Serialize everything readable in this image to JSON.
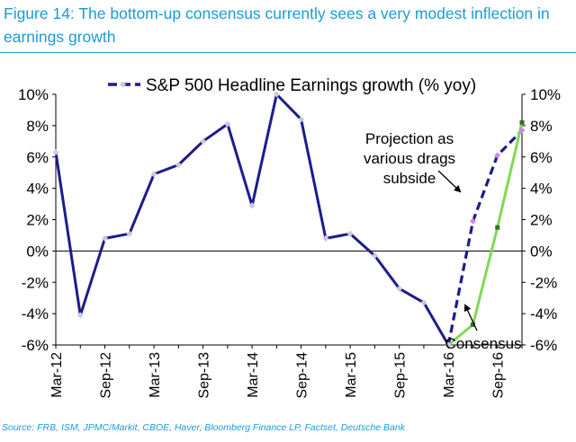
{
  "header": {
    "title": "Figure 14: The bottom-up consensus currently sees a very modest inflection in earnings growth"
  },
  "footer": {
    "source": "Source: FRB, ISM, JPMC/Markit, CBOE, Haver, Bloomberg Finance LP, Factset, Deutsche Bank"
  },
  "chart_data": {
    "type": "line",
    "x_tick_labels": [
      "Mar-12",
      "Sep-12",
      "Mar-13",
      "Sep-13",
      "Mar-14",
      "Sep-14",
      "Mar-15",
      "Sep-15",
      "Mar-16",
      "Sep-16"
    ],
    "y_tick_labels": [
      "10%",
      "8%",
      "6%",
      "4%",
      "2%",
      "0%",
      "-2%",
      "-4%",
      "-6%"
    ],
    "ylim": [
      -6,
      10
    ],
    "grid": false,
    "legend": {
      "position": "top",
      "entries": [
        "S&P 500 Headline Earnings growth (% yoy)"
      ]
    },
    "series": [
      {
        "name": "S&P 500 Headline Earnings growth (% yoy)",
        "color": "#1c1c8c",
        "style": "solid",
        "x": [
          "Mar-12",
          "Jun-12",
          "Sep-12",
          "Dec-12",
          "Mar-13",
          "Jun-13",
          "Sep-13",
          "Dec-13",
          "Mar-14",
          "Jun-14",
          "Sep-14",
          "Dec-14",
          "Mar-15",
          "Jun-15",
          "Sep-15",
          "Dec-15",
          "Mar-16"
        ],
        "values": [
          6.3,
          -4.1,
          0.8,
          1.1,
          4.9,
          5.5,
          7.0,
          8.1,
          2.9,
          10.0,
          8.4,
          0.8,
          1.1,
          -0.3,
          -2.4,
          -3.3,
          -6.0
        ]
      },
      {
        "name": "",
        "color": "#1c1c8c",
        "style": "dashed",
        "x": [
          "Mar-16",
          "Jun-16",
          "Sep-16",
          "Dec-16"
        ],
        "values": [
          -6.0,
          1.9,
          6.1,
          7.7
        ]
      },
      {
        "name": "",
        "color": "#7ed957",
        "style": "solid",
        "x": [
          "Mar-16",
          "Jun-16",
          "Sep-16",
          "Dec-16"
        ],
        "values": [
          -6.0,
          -4.7,
          1.5,
          8.2
        ]
      }
    ],
    "annotations": [
      {
        "text": "Projection as various drags subside",
        "lines": [
          "Projection as",
          "various drags",
          "subside"
        ],
        "points_to": "dashed projection"
      },
      {
        "text": "Consensus",
        "points_to": "green consensus line"
      }
    ]
  }
}
